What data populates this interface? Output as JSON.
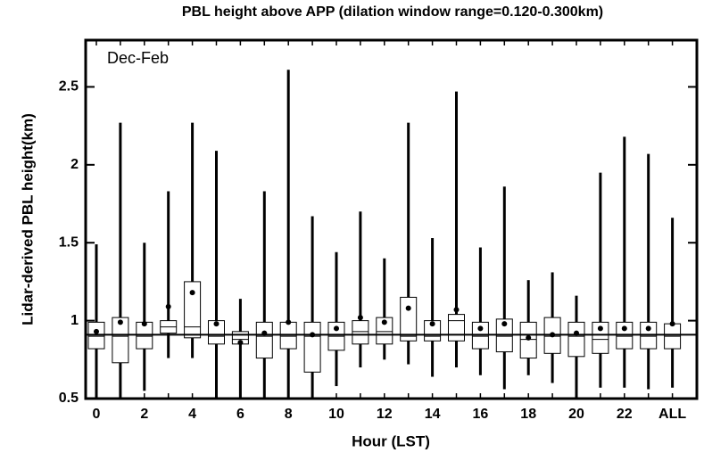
{
  "chart_data": {
    "type": "box",
    "title": "PBL height above APP (dilation window range=0.120-0.300km)",
    "annotation": "Dec-Feb",
    "xlabel": "Hour (LST)",
    "ylabel": "Lidar-derived PBL height(km)",
    "categories": [
      "0",
      null,
      "2",
      null,
      "4",
      null,
      "6",
      null,
      "8",
      null,
      "10",
      null,
      "12",
      null,
      "14",
      null,
      "16",
      null,
      "18",
      null,
      "20",
      null,
      "22",
      null,
      "ALL"
    ],
    "low": [
      0.5,
      0.5,
      0.55,
      0.76,
      0.76,
      0.5,
      0.5,
      0.5,
      0.5,
      0.5,
      0.58,
      0.7,
      0.75,
      0.72,
      0.64,
      0.7,
      0.65,
      0.56,
      0.65,
      0.6,
      0.5,
      0.57,
      0.57,
      0.56,
      0.57
    ],
    "q1": [
      0.82,
      0.73,
      0.82,
      0.92,
      0.89,
      0.85,
      0.85,
      0.76,
      0.82,
      0.67,
      0.81,
      0.85,
      0.85,
      0.87,
      0.87,
      0.87,
      0.82,
      0.8,
      0.76,
      0.79,
      0.77,
      0.79,
      0.82,
      0.82,
      0.82
    ],
    "median": [
      0.9,
      0.9,
      0.9,
      0.96,
      0.96,
      0.9,
      0.88,
      0.9,
      0.9,
      0.9,
      0.9,
      0.93,
      0.93,
      0.9,
      0.9,
      1.0,
      0.9,
      0.9,
      0.88,
      0.9,
      0.9,
      0.88,
      0.9,
      0.9,
      0.9
    ],
    "q3": [
      0.99,
      1.02,
      0.99,
      1.0,
      1.25,
      1.0,
      0.93,
      0.99,
      0.99,
      0.99,
      0.99,
      1.0,
      1.02,
      1.15,
      1.0,
      1.04,
      0.99,
      1.01,
      0.99,
      1.02,
      0.99,
      0.99,
      0.99,
      0.99,
      0.98
    ],
    "high": [
      1.49,
      2.27,
      1.5,
      1.83,
      2.27,
      2.09,
      1.14,
      1.83,
      2.61,
      1.67,
      1.44,
      1.7,
      1.4,
      2.27,
      1.53,
      2.47,
      1.47,
      1.86,
      1.26,
      1.31,
      1.16,
      1.95,
      2.18,
      2.07,
      1.66
    ],
    "mean": [
      0.93,
      0.99,
      0.98,
      1.09,
      1.18,
      0.98,
      0.86,
      0.92,
      0.99,
      0.91,
      0.95,
      1.02,
      0.99,
      1.08,
      0.98,
      1.07,
      0.95,
      0.98,
      0.89,
      0.91,
      0.92,
      0.95,
      0.95,
      0.95,
      0.98
    ],
    "reference_line": 0.91,
    "color": "#000000",
    "ylim": [
      0.5,
      2.8
    ],
    "yticks": [
      0.5,
      1,
      1.5,
      2,
      2.5
    ]
  }
}
